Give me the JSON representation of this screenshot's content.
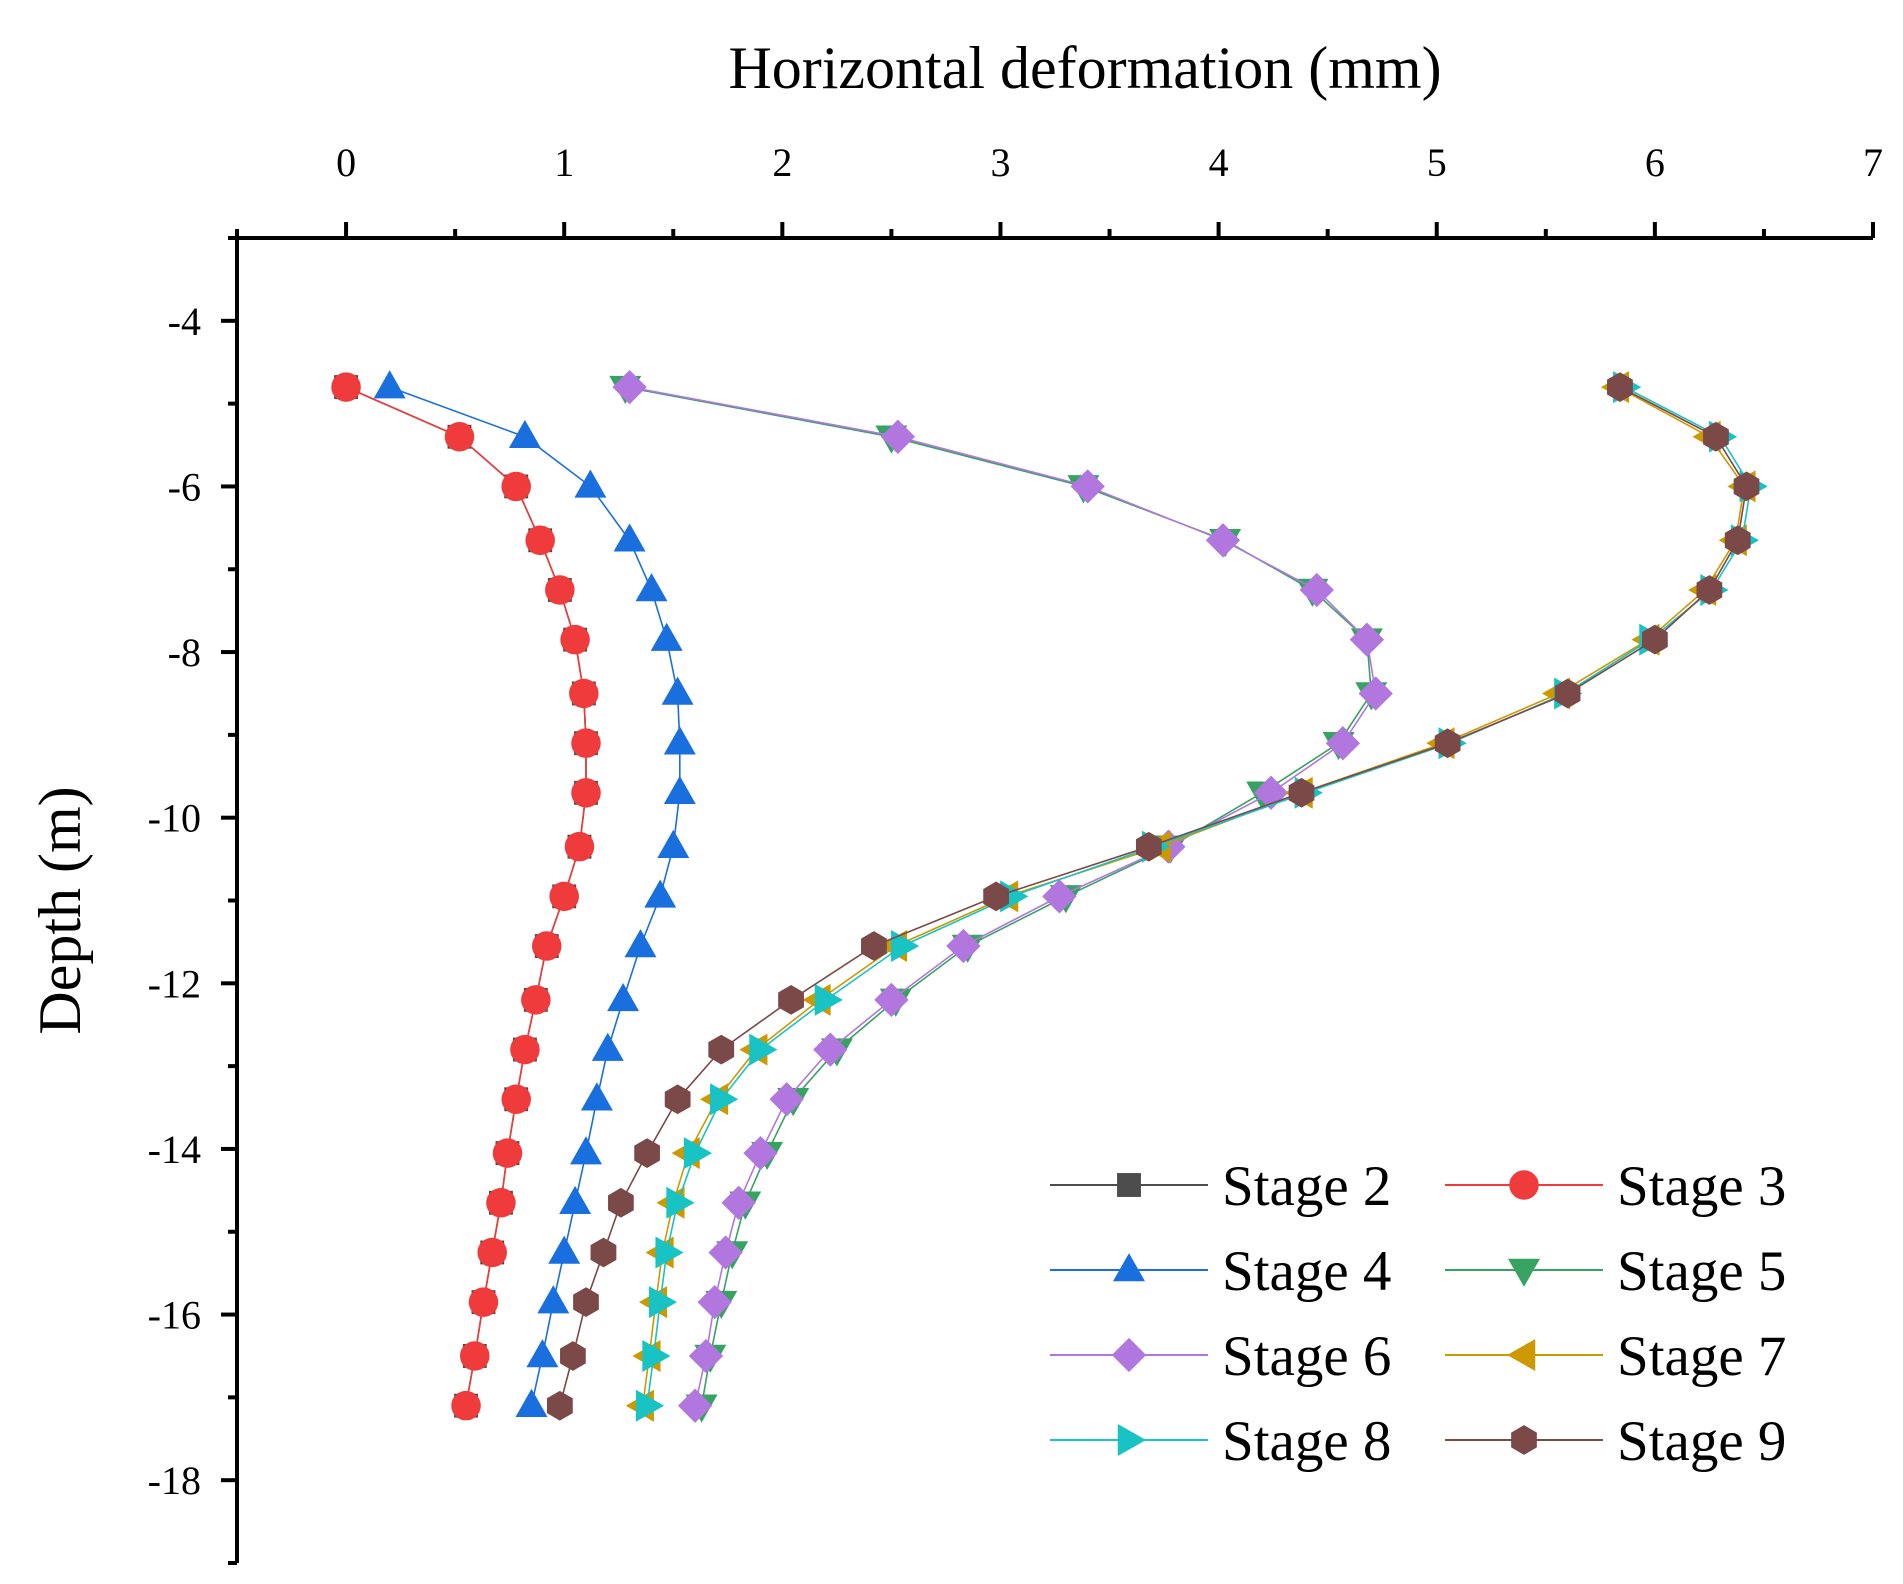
{
  "chart_data": {
    "type": "line",
    "title": "",
    "xlabel": "Horizontal deformation (mm)",
    "ylabel": "Depth (m)",
    "xlim": [
      -0.5,
      7
    ],
    "ylim": [
      -19,
      -3
    ],
    "x_ticks": [
      0,
      1,
      2,
      3,
      4,
      5,
      6,
      7
    ],
    "y_ticks": [
      -4,
      -6,
      -8,
      -10,
      -12,
      -14,
      -16,
      -18
    ],
    "x_axis_position": "top",
    "grid": false,
    "legend": "bottom-right",
    "depths": [
      -4.8,
      -5.4,
      -6.0,
      -6.65,
      -7.25,
      -7.85,
      -8.5,
      -9.1,
      -9.7,
      -10.35,
      -10.95,
      -11.55,
      -12.2,
      -12.8,
      -13.4,
      -14.05,
      -14.65,
      -15.25,
      -15.85,
      -16.5,
      -17.1
    ],
    "series": [
      {
        "name": "Stage 2",
        "color": "#4d4d4d",
        "marker": "square",
        "x": [
          0.0,
          0.52,
          0.78,
          0.89,
          0.98,
          1.05,
          1.09,
          1.1,
          1.1,
          1.07,
          1.0,
          0.92,
          0.87,
          0.82,
          0.78,
          0.74,
          0.71,
          0.67,
          0.63,
          0.59,
          0.55
        ]
      },
      {
        "name": "Stage 3",
        "color": "#ef3b3b",
        "marker": "circle",
        "x": [
          0.0,
          0.52,
          0.78,
          0.89,
          0.98,
          1.05,
          1.09,
          1.1,
          1.1,
          1.07,
          1.0,
          0.92,
          0.87,
          0.82,
          0.78,
          0.74,
          0.71,
          0.67,
          0.63,
          0.59,
          0.55
        ]
      },
      {
        "name": "Stage 4",
        "color": "#1a6fdf",
        "marker": "triangle-up",
        "x": [
          0.2,
          0.82,
          1.12,
          1.3,
          1.4,
          1.47,
          1.52,
          1.53,
          1.53,
          1.5,
          1.44,
          1.35,
          1.27,
          1.2,
          1.15,
          1.1,
          1.05,
          1.0,
          0.95,
          0.9,
          0.85
        ]
      },
      {
        "name": "Stage 5",
        "color": "#37a363",
        "marker": "triangle-down",
        "x": [
          1.28,
          2.5,
          3.38,
          4.03,
          4.43,
          4.68,
          4.7,
          4.55,
          4.2,
          3.78,
          3.3,
          2.85,
          2.52,
          2.25,
          2.05,
          1.93,
          1.83,
          1.77,
          1.72,
          1.67,
          1.63
        ]
      },
      {
        "name": "Stage 6",
        "color": "#b177de",
        "marker": "diamond",
        "x": [
          1.3,
          2.53,
          3.4,
          4.02,
          4.45,
          4.68,
          4.72,
          4.57,
          4.24,
          3.77,
          3.27,
          2.83,
          2.5,
          2.22,
          2.02,
          1.9,
          1.8,
          1.74,
          1.69,
          1.65,
          1.6
        ]
      },
      {
        "name": "Stage 7",
        "color": "#cc9900",
        "marker": "triangle-left",
        "x": [
          5.83,
          6.25,
          6.41,
          6.37,
          6.23,
          5.97,
          5.56,
          5.03,
          4.38,
          3.73,
          3.03,
          2.52,
          2.17,
          1.88,
          1.7,
          1.57,
          1.5,
          1.45,
          1.42,
          1.39,
          1.36
        ]
      },
      {
        "name": "Stage 8",
        "color": "#19c3c3",
        "marker": "triangle-right",
        "x": [
          5.86,
          6.3,
          6.44,
          6.4,
          6.26,
          5.98,
          5.59,
          5.06,
          4.4,
          3.7,
          3.05,
          2.55,
          2.2,
          1.9,
          1.72,
          1.6,
          1.52,
          1.47,
          1.44,
          1.41,
          1.38
        ]
      },
      {
        "name": "Stage 9",
        "color": "#7b4948",
        "marker": "hexagon",
        "x": [
          5.84,
          6.28,
          6.42,
          6.38,
          6.25,
          6.0,
          5.6,
          5.05,
          4.38,
          3.68,
          2.98,
          2.42,
          2.04,
          1.72,
          1.52,
          1.38,
          1.26,
          1.18,
          1.1,
          1.04,
          0.98
        ]
      }
    ]
  }
}
